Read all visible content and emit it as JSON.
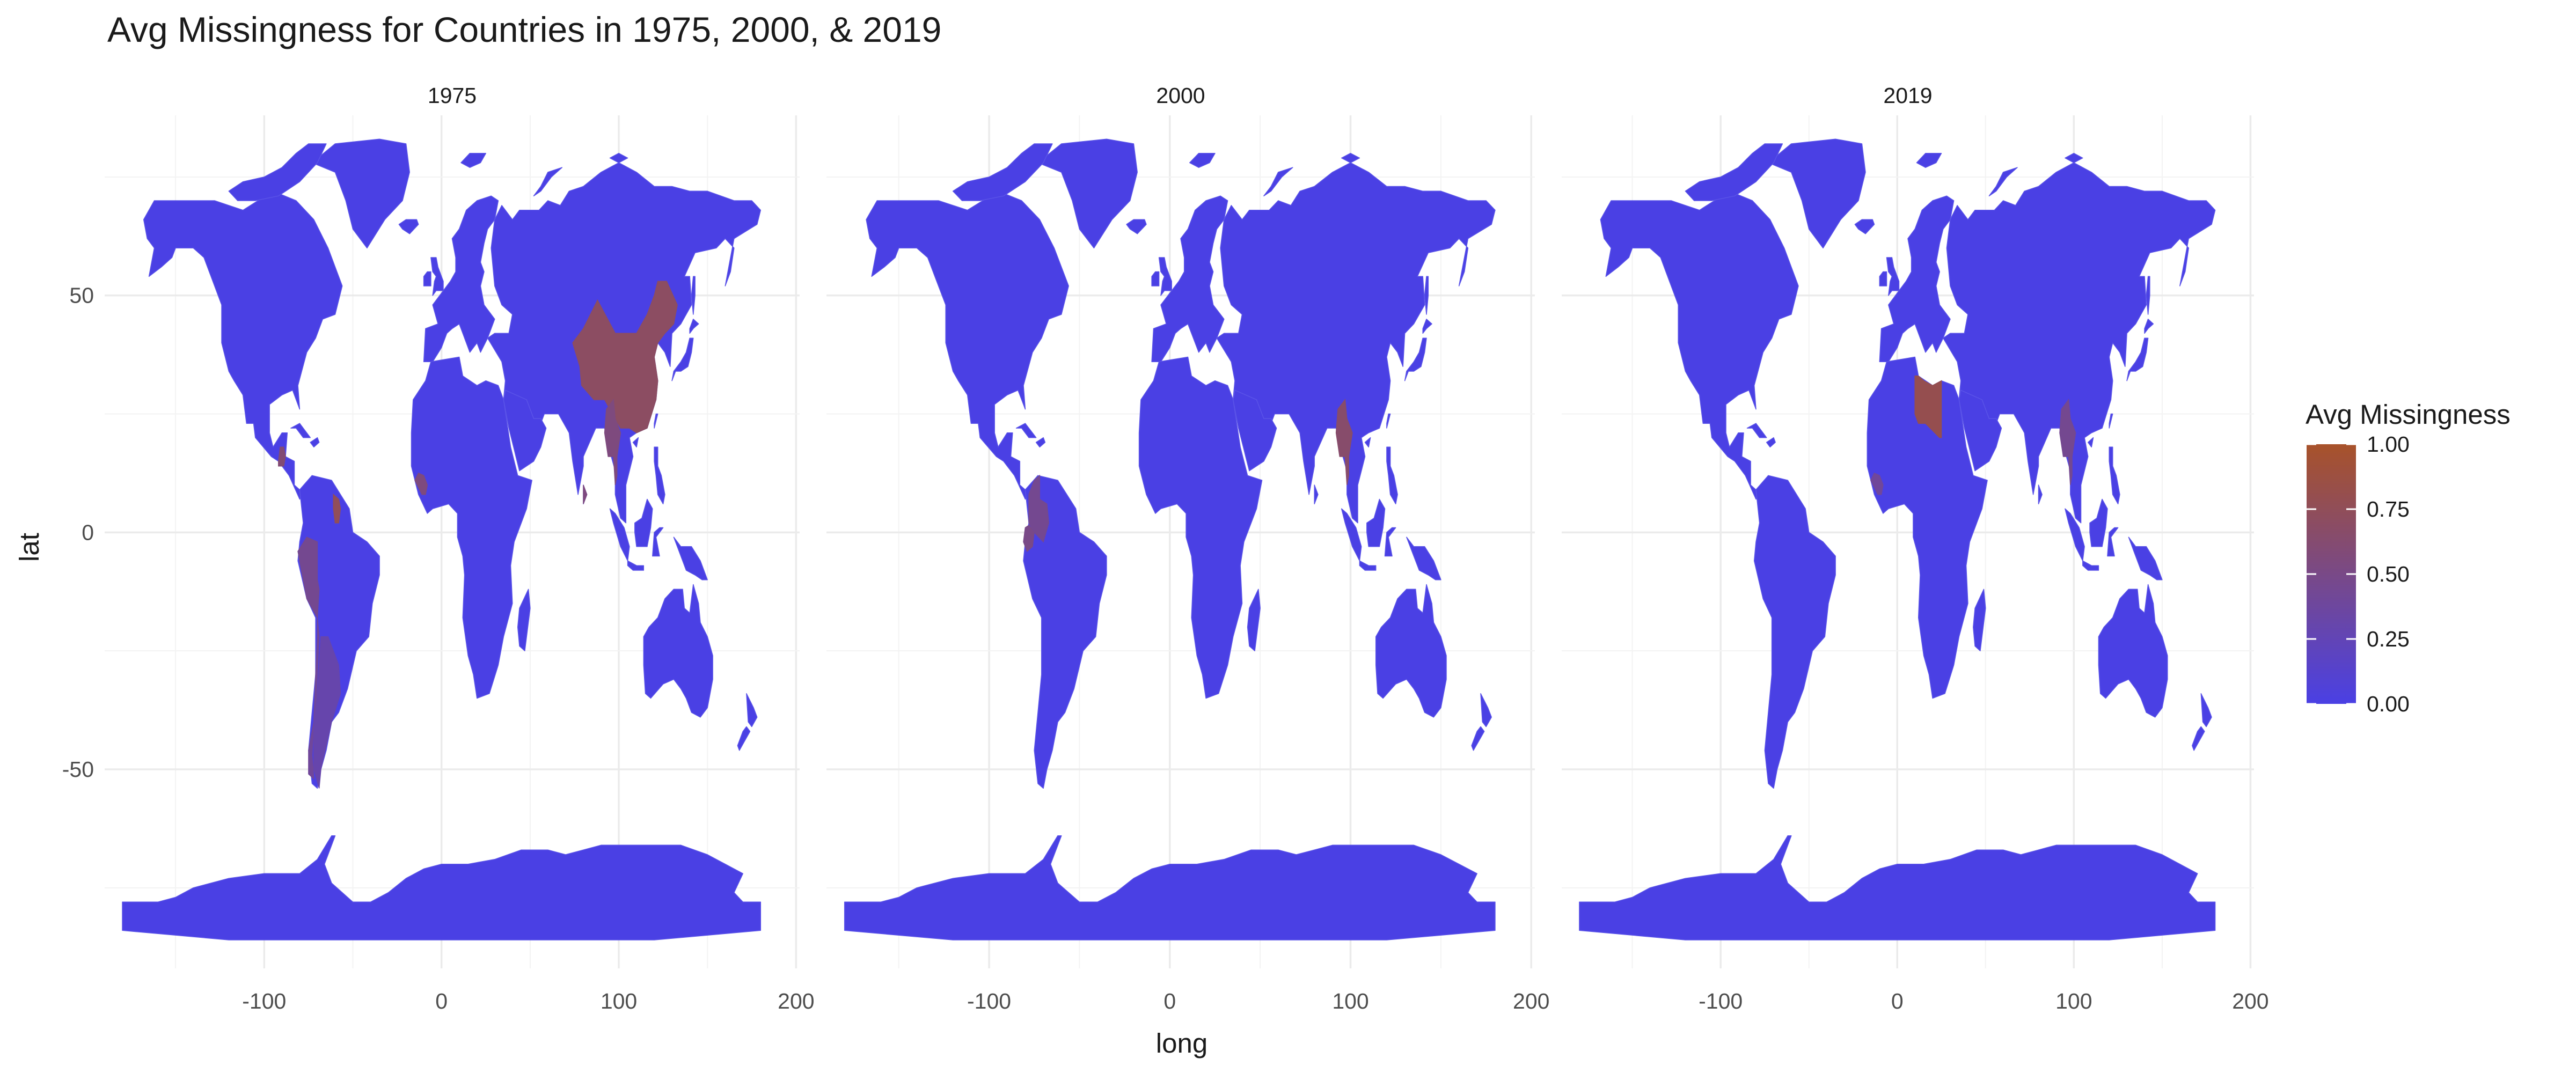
{
  "chart_data": {
    "type": "choropleth",
    "title": "Avg Missingness for Countries in 1975, 2000, & 2019",
    "xlabel": "long",
    "ylabel": "lat",
    "xlim": [
      -190,
      202
    ],
    "ylim": [
      -92,
      88
    ],
    "x_ticks": [
      -100,
      0,
      100,
      200
    ],
    "y_ticks": [
      -50,
      0,
      50
    ],
    "x_tick_labels": [
      "-100",
      "0",
      "100",
      "200"
    ],
    "y_tick_labels": [
      "-50",
      "0",
      "50"
    ],
    "grid": true,
    "legend": {
      "title": "Avg Missingness",
      "position": "right",
      "range": [
        0,
        1
      ],
      "breaks": [
        0,
        0.25,
        0.5,
        0.75,
        1
      ],
      "labels": [
        "0.00",
        "0.25",
        "0.50",
        "0.75",
        "1.00"
      ],
      "low_color": "#4a40e4",
      "high_color": "#a8522a"
    },
    "facets": [
      {
        "label": "1975",
        "regions": [
          {
            "name": "China",
            "value": 0.7
          },
          {
            "name": "Myanmar",
            "value": 0.55
          },
          {
            "name": "Guatemala",
            "value": 0.6
          },
          {
            "name": "Guyana",
            "value": 0.75
          },
          {
            "name": "Peru",
            "value": 0.45
          },
          {
            "name": "Chile",
            "value": 0.4
          },
          {
            "name": "Argentina",
            "value": 0.3
          },
          {
            "name": "Sri Lanka",
            "value": 0.55
          },
          {
            "name": "Guinea",
            "value": 0.55
          }
        ]
      },
      {
        "label": "2000",
        "regions": [
          {
            "name": "Myanmar",
            "value": 0.65
          },
          {
            "name": "Ecuador",
            "value": 0.5
          },
          {
            "name": "Colombia",
            "value": 0.45
          }
        ]
      },
      {
        "label": "2019",
        "regions": [
          {
            "name": "Libya",
            "value": 0.8
          },
          {
            "name": "Myanmar",
            "value": 0.45
          },
          {
            "name": "Guinea",
            "value": 0.4
          }
        ]
      }
    ]
  }
}
